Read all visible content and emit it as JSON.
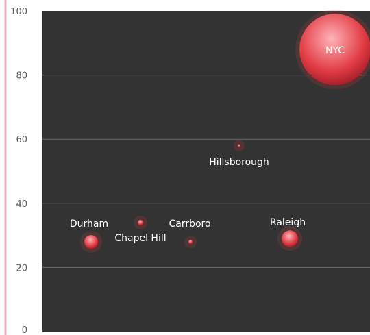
{
  "chart_data": {
    "type": "bubble",
    "ylim": [
      0,
      100
    ],
    "yticks": [
      "0",
      "20",
      "40",
      "60",
      "80",
      "100"
    ],
    "grid": true,
    "colors": {
      "plot_bg": "#333333",
      "page_bg": "#ffffff",
      "axis_line": "#e8b3bc",
      "gridline": "#6a6a6a",
      "tick_text": "#5a5a5a",
      "bubble": "#e23b44",
      "bubble_highlight": "#ffb3b8",
      "label_text": "#ffffff"
    },
    "points": [
      {
        "label": "Durham",
        "y": 28,
        "size": 9
      },
      {
        "label": "Chapel Hill",
        "y": 34,
        "size": 4
      },
      {
        "label": "Carrboro",
        "y": 28,
        "size": 2
      },
      {
        "label": "Hillsborough",
        "y": 58,
        "size": 1
      },
      {
        "label": "Raleigh",
        "y": 29,
        "size": 12
      },
      {
        "label": "NYC",
        "y": 88,
        "size": 100
      }
    ]
  }
}
